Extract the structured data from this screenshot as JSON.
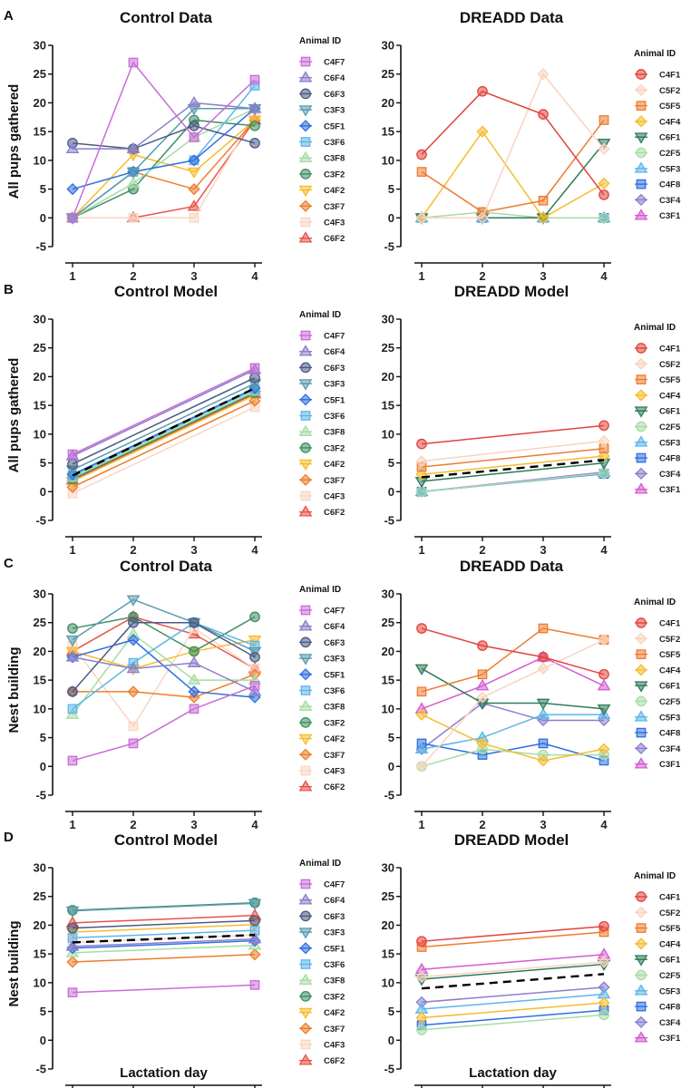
{
  "figure_labels": [
    "A",
    "B",
    "C",
    "D"
  ],
  "xlabel": "Lactation day",
  "ylabels": [
    "All pups gathered",
    "All pups gathered",
    "Nest building",
    "Nest building"
  ],
  "legend_title": "Animal ID",
  "palettes": {
    "control": [
      {
        "id": "C4F7",
        "color": "#c86dd7",
        "marker": "square"
      },
      {
        "id": "C6F4",
        "color": "#8a7fcc",
        "marker": "triangle-up"
      },
      {
        "id": "C6F3",
        "color": "#4a5a84",
        "marker": "circle"
      },
      {
        "id": "C3F3",
        "color": "#5a9bae",
        "marker": "triangle-down"
      },
      {
        "id": "C5F1",
        "color": "#2f6fe0",
        "marker": "diamond"
      },
      {
        "id": "C3F6",
        "color": "#5cb6e8",
        "marker": "square"
      },
      {
        "id": "C3F8",
        "color": "#a6dca6",
        "marker": "triangle-up"
      },
      {
        "id": "C3F2",
        "color": "#3d8f62",
        "marker": "circle"
      },
      {
        "id": "C4F2",
        "color": "#f6bc2e",
        "marker": "triangle-down"
      },
      {
        "id": "C3F7",
        "color": "#ef7d2b",
        "marker": "diamond"
      },
      {
        "id": "C4F3",
        "color": "#f9d6c4",
        "marker": "square"
      },
      {
        "id": "C6F2",
        "color": "#e9524b",
        "marker": "triangle-up"
      }
    ],
    "dreadd": [
      {
        "id": "C4F1",
        "color": "#e0443c",
        "marker": "circle"
      },
      {
        "id": "C5F2",
        "color": "#f9d3c0",
        "marker": "diamond"
      },
      {
        "id": "C5F5",
        "color": "#ee7b31",
        "marker": "square"
      },
      {
        "id": "C4F4",
        "color": "#f6bc2e",
        "marker": "diamond"
      },
      {
        "id": "C6F1",
        "color": "#2f7a58",
        "marker": "triangle-down"
      },
      {
        "id": "C2F5",
        "color": "#a6dca6",
        "marker": "circle"
      },
      {
        "id": "C5F3",
        "color": "#5cb6e8",
        "marker": "triangle-up"
      },
      {
        "id": "C4F8",
        "color": "#2f6fe0",
        "marker": "square"
      },
      {
        "id": "C3F4",
        "color": "#8a7fcc",
        "marker": "diamond"
      },
      {
        "id": "C3F1",
        "color": "#d45bd1",
        "marker": "triangle-up"
      }
    ]
  },
  "chart_data": [
    {
      "type": "line",
      "title": "Control Data",
      "palette": "control",
      "panel_label": "A",
      "x": [
        1,
        2,
        3,
        4
      ],
      "ylim": [
        -5,
        30
      ],
      "yticks": [
        -5,
        0,
        5,
        10,
        15,
        20,
        25,
        30
      ],
      "series": [
        {
          "name": "C4F7",
          "values": [
            0,
            27,
            14,
            24
          ]
        },
        {
          "name": "C6F4",
          "values": [
            12,
            12,
            20,
            19
          ]
        },
        {
          "name": "C6F3",
          "values": [
            13,
            12,
            16,
            13
          ]
        },
        {
          "name": "C3F3",
          "values": [
            0,
            8,
            19,
            19
          ]
        },
        {
          "name": "C5F1",
          "values": [
            5,
            8,
            10,
            19
          ]
        },
        {
          "name": "C3F6",
          "values": [
            0,
            8,
            10,
            23
          ]
        },
        {
          "name": "C3F8",
          "values": [
            0,
            6,
            14,
            19
          ]
        },
        {
          "name": "C3F2",
          "values": [
            0,
            5,
            17,
            16
          ]
        },
        {
          "name": "C4F2",
          "values": [
            0,
            11,
            8,
            17
          ]
        },
        {
          "name": "C3F7",
          "values": [
            0,
            8,
            5,
            17
          ]
        },
        {
          "name": "C4F3",
          "values": [
            0,
            0,
            0,
            18
          ]
        },
        {
          "name": "C6F2",
          "values": [
            0,
            0,
            2,
            17
          ]
        }
      ]
    },
    {
      "type": "line",
      "title": "DREADD Data",
      "palette": "dreadd",
      "x": [
        1,
        2,
        3,
        4
      ],
      "ylim": [
        -5,
        30
      ],
      "yticks": [
        -5,
        0,
        5,
        10,
        15,
        20,
        25,
        30
      ],
      "series": [
        {
          "name": "C4F1",
          "values": [
            11,
            22,
            18,
            4
          ]
        },
        {
          "name": "C5F2",
          "values": [
            0,
            0,
            25,
            12
          ]
        },
        {
          "name": "C5F5",
          "values": [
            8,
            1,
            3,
            17
          ]
        },
        {
          "name": "C4F4",
          "values": [
            0,
            15,
            0,
            6
          ]
        },
        {
          "name": "C6F1",
          "values": [
            0,
            0,
            0,
            13
          ]
        },
        {
          "name": "C2F5",
          "values": [
            0,
            1,
            0,
            0
          ]
        },
        {
          "name": "C5F3",
          "values": [
            0,
            0,
            0,
            0
          ]
        },
        {
          "name": "C4F8",
          "values": [
            0,
            0,
            0,
            0
          ]
        },
        {
          "name": "C3F4",
          "values": [
            0,
            0,
            0,
            0
          ]
        },
        {
          "name": "C3F1",
          "values": [
            0,
            0,
            0,
            0
          ]
        }
      ]
    },
    {
      "type": "line",
      "title": "Control Model",
      "palette": "control",
      "panel_label": "B",
      "x": [
        1,
        4
      ],
      "ylim": [
        -5,
        30
      ],
      "yticks": [
        -5,
        0,
        5,
        10,
        15,
        20,
        25,
        30
      ],
      "mean_line": [
        2.8,
        18.0
      ],
      "series": [
        {
          "name": "C4F7",
          "values": [
            6.5,
            21.5
          ]
        },
        {
          "name": "C6F4",
          "values": [
            6.2,
            21.2
          ]
        },
        {
          "name": "C6F3",
          "values": [
            4.8,
            19.8
          ]
        },
        {
          "name": "C3F3",
          "values": [
            3.8,
            18.8
          ]
        },
        {
          "name": "C5F1",
          "values": [
            3.0,
            18.0
          ]
        },
        {
          "name": "C3F6",
          "values": [
            2.8,
            17.8
          ]
        },
        {
          "name": "C3F8",
          "values": [
            2.5,
            17.5
          ]
        },
        {
          "name": "C3F2",
          "values": [
            2.2,
            17.2
          ]
        },
        {
          "name": "C4F2",
          "values": [
            1.8,
            16.8
          ]
        },
        {
          "name": "C3F7",
          "values": [
            0.8,
            15.8
          ]
        },
        {
          "name": "C4F3",
          "values": [
            -0.3,
            14.7
          ]
        },
        {
          "name": "C6F2",
          "values": [
            2.0,
            17.0
          ]
        }
      ]
    },
    {
      "type": "line",
      "title": "DREADD Model",
      "palette": "dreadd",
      "x": [
        1,
        4
      ],
      "ylim": [
        -5,
        30
      ],
      "yticks": [
        -5,
        0,
        5,
        10,
        15,
        20,
        25,
        30
      ],
      "mean_line": [
        2.5,
        5.5
      ],
      "series": [
        {
          "name": "C4F1",
          "values": [
            8.3,
            11.5
          ]
        },
        {
          "name": "C5F2",
          "values": [
            5.3,
            8.8
          ]
        },
        {
          "name": "C5F5",
          "values": [
            4.3,
            7.5
          ]
        },
        {
          "name": "C4F4",
          "values": [
            3.0,
            6.2
          ]
        },
        {
          "name": "C6F1",
          "values": [
            1.8,
            5.0
          ]
        },
        {
          "name": "C2F5",
          "values": [
            0,
            3.2
          ]
        },
        {
          "name": "C5F3",
          "values": [
            0,
            3.3
          ]
        },
        {
          "name": "C4F8",
          "values": [
            0,
            3.1
          ]
        },
        {
          "name": "C3F4",
          "values": [
            0,
            3.2
          ]
        },
        {
          "name": "C3F1",
          "values": [
            0,
            3.4
          ]
        }
      ]
    },
    {
      "type": "line",
      "title": "Control Data",
      "palette": "control",
      "panel_label": "C",
      "x": [
        1,
        2,
        3,
        4
      ],
      "ylim": [
        -5,
        30
      ],
      "yticks": [
        -5,
        0,
        5,
        10,
        15,
        20,
        25,
        30
      ],
      "series": [
        {
          "name": "C4F7",
          "values": [
            1,
            4,
            10,
            14
          ]
        },
        {
          "name": "C6F4",
          "values": [
            19,
            17,
            18,
            13
          ]
        },
        {
          "name": "C6F3",
          "values": [
            13,
            25,
            25,
            19
          ]
        },
        {
          "name": "C3F3",
          "values": [
            22,
            29,
            25,
            20
          ]
        },
        {
          "name": "C5F1",
          "values": [
            19,
            22,
            13,
            12
          ]
        },
        {
          "name": "C3F6",
          "values": [
            10,
            18,
            25,
            21
          ]
        },
        {
          "name": "C3F8",
          "values": [
            9,
            23,
            15,
            15
          ]
        },
        {
          "name": "C3F2",
          "values": [
            24,
            26,
            20,
            26
          ]
        },
        {
          "name": "C4F2",
          "values": [
            20,
            17,
            20,
            22
          ]
        },
        {
          "name": "C3F7",
          "values": [
            13,
            13,
            12,
            16
          ]
        },
        {
          "name": "C4F3",
          "values": [
            21,
            7,
            24,
            17
          ]
        },
        {
          "name": "C6F2",
          "values": [
            20,
            26,
            23,
            17
          ]
        }
      ]
    },
    {
      "type": "line",
      "title": "DREADD Data",
      "palette": "dreadd",
      "x": [
        1,
        2,
        3,
        4
      ],
      "ylim": [
        -5,
        30
      ],
      "yticks": [
        -5,
        0,
        5,
        10,
        15,
        20,
        25,
        30
      ],
      "series": [
        {
          "name": "C4F1",
          "values": [
            24,
            21,
            19,
            16
          ]
        },
        {
          "name": "C5F2",
          "values": [
            0,
            12,
            17,
            22
          ]
        },
        {
          "name": "C5F5",
          "values": [
            13,
            16,
            24,
            22
          ]
        },
        {
          "name": "C4F4",
          "values": [
            9,
            4,
            1,
            3
          ]
        },
        {
          "name": "C6F1",
          "values": [
            17,
            11,
            11,
            10
          ]
        },
        {
          "name": "C2F5",
          "values": [
            0,
            3,
            2,
            2
          ]
        },
        {
          "name": "C5F3",
          "values": [
            3,
            5,
            9,
            9
          ]
        },
        {
          "name": "C4F8",
          "values": [
            4,
            2,
            4,
            1
          ]
        },
        {
          "name": "C3F4",
          "values": [
            3,
            11,
            8,
            8
          ]
        },
        {
          "name": "C3F1",
          "values": [
            10,
            14,
            19,
            14
          ]
        }
      ]
    },
    {
      "type": "line",
      "title": "Control Model",
      "palette": "control",
      "panel_label": "D",
      "x": [
        1,
        4
      ],
      "ylim": [
        -5,
        30
      ],
      "yticks": [
        -5,
        0,
        5,
        10,
        15,
        20,
        25,
        30
      ],
      "mean_line": [
        17.0,
        18.3
      ],
      "series": [
        {
          "name": "C4F7",
          "values": [
            8.3,
            9.6
          ]
        },
        {
          "name": "C6F4",
          "values": [
            16.3,
            17.6
          ]
        },
        {
          "name": "C6F3",
          "values": [
            19.5,
            20.8
          ]
        },
        {
          "name": "C3F3",
          "values": [
            22.5,
            23.8
          ]
        },
        {
          "name": "C5F1",
          "values": [
            16.0,
            17.3
          ]
        },
        {
          "name": "C3F6",
          "values": [
            17.8,
            19.1
          ]
        },
        {
          "name": "C3F8",
          "values": [
            15.2,
            16.5
          ]
        },
        {
          "name": "C3F2",
          "values": [
            22.6,
            23.9
          ]
        },
        {
          "name": "C4F2",
          "values": [
            18.8,
            20.1
          ]
        },
        {
          "name": "C3F7",
          "values": [
            13.6,
            14.9
          ]
        },
        {
          "name": "C4F3",
          "values": [
            17.0,
            18.3
          ]
        },
        {
          "name": "C6F2",
          "values": [
            20.4,
            21.7
          ]
        }
      ]
    },
    {
      "type": "line",
      "title": "DREADD Model",
      "palette": "dreadd",
      "x": [
        1,
        4
      ],
      "ylim": [
        -5,
        30
      ],
      "yticks": [
        -5,
        0,
        5,
        10,
        15,
        20,
        25,
        30
      ],
      "mean_line": [
        9.0,
        11.5
      ],
      "series": [
        {
          "name": "C4F1",
          "values": [
            17.2,
            19.8
          ]
        },
        {
          "name": "C5F2",
          "values": [
            11.0,
            13.6
          ]
        },
        {
          "name": "C5F5",
          "values": [
            16.2,
            18.8
          ]
        },
        {
          "name": "C4F4",
          "values": [
            3.9,
            6.5
          ]
        },
        {
          "name": "C6F1",
          "values": [
            10.6,
            13.2
          ]
        },
        {
          "name": "C2F5",
          "values": [
            1.8,
            4.4
          ]
        },
        {
          "name": "C5F3",
          "values": [
            5.4,
            8.0
          ]
        },
        {
          "name": "C4F8",
          "values": [
            2.6,
            5.2
          ]
        },
        {
          "name": "C3F4",
          "values": [
            6.6,
            9.2
          ]
        },
        {
          "name": "C3F1",
          "values": [
            12.3,
            14.9
          ]
        }
      ]
    }
  ]
}
